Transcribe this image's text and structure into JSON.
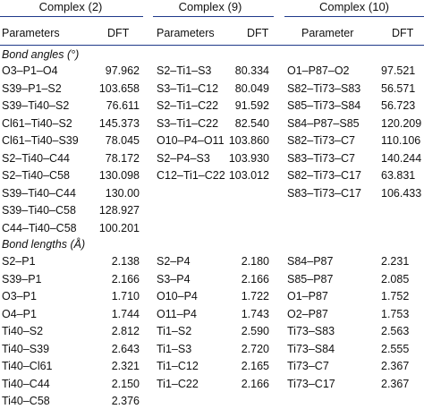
{
  "headers": {
    "complex2": "Complex (2)",
    "complex9": "Complex (9)",
    "complex10": "Complex (10)"
  },
  "subheaders": {
    "col1_param": "Parameters",
    "col1_dft": "DFT",
    "col2_param": "Parameters",
    "col2_dft": "DFT",
    "col3_param": "Parameter",
    "col3_dft": "DFT"
  },
  "sections": {
    "angles": "Bond angles (°)",
    "lengths": "Bond lengths (Å)"
  },
  "angles": {
    "c2": [
      [
        "O3–P1–O4",
        "97.962"
      ],
      [
        "S39–P1–S2",
        "103.658"
      ],
      [
        "S39–Ti40–S2",
        "76.611"
      ],
      [
        "Cl61–Ti40–S2",
        "145.373"
      ],
      [
        "Cl61–Ti40–S39",
        "78.045"
      ],
      [
        "S2–Ti40–C44",
        "78.172"
      ],
      [
        "S2–Ti40–C58",
        "130.098"
      ],
      [
        "S39–Ti40–C44",
        "130.00"
      ],
      [
        "S39–Ti40–C58",
        "128.927"
      ],
      [
        "C44–Ti40–C58",
        "100.201"
      ]
    ],
    "c9": [
      [
        "S2–Ti1–S3",
        "80.334"
      ],
      [
        "S3–Ti1–C12",
        "80.049"
      ],
      [
        "S2–Ti1–C22",
        "91.592"
      ],
      [
        "S3–Ti1–C22",
        "82.540"
      ],
      [
        "O10–P4–O11",
        "103.860"
      ],
      [
        "S2–P4–S3",
        "103.930"
      ],
      [
        "C12–Ti1–C22",
        "103.012"
      ]
    ],
    "c10": [
      [
        "O1–P87–O2",
        "97.521"
      ],
      [
        "S82–Ti73–S83",
        "56.571"
      ],
      [
        "S85–Ti73–S84",
        "56.723"
      ],
      [
        "S84–P87–S85",
        "120.209"
      ],
      [
        "S82–Ti73–C7",
        "110.106"
      ],
      [
        "S83–Ti73–C7",
        "140.244"
      ],
      [
        "S82–Ti73–C17",
        "63.831"
      ],
      [
        "S83–Ti73–C17",
        "106.433"
      ]
    ]
  },
  "lengths": {
    "c2": [
      [
        "S2–P1",
        "2.138"
      ],
      [
        "S39–P1",
        "2.166"
      ],
      [
        "O3–P1",
        "1.710"
      ],
      [
        "O4–P1",
        "1.744"
      ],
      [
        "Ti40–S2",
        "2.812"
      ],
      [
        "Ti40–S39",
        "2.643"
      ],
      [
        "Ti40–Cl61",
        "2.321"
      ],
      [
        "Ti40–C44",
        "2.150"
      ],
      [
        "Ti40–C58",
        "2.376"
      ]
    ],
    "c9": [
      [
        "S2–P4",
        "2.180"
      ],
      [
        "S3–P4",
        "2.166"
      ],
      [
        "O10–P4",
        "1.722"
      ],
      [
        "O11–P4",
        "1.743"
      ],
      [
        "Ti1–S2",
        "2.590"
      ],
      [
        "Ti1–S3",
        "2.720"
      ],
      [
        "Ti1–C12",
        "2.165"
      ],
      [
        "Ti1–C22",
        "2.166"
      ]
    ],
    "c10": [
      [
        "S84–P87",
        "2.231"
      ],
      [
        "S85–P87",
        "2.085"
      ],
      [
        "O1–P87",
        "1.752"
      ],
      [
        "O2–P87",
        "1.753"
      ],
      [
        "Ti73–S83",
        "2.563"
      ],
      [
        "Ti73–S84",
        "2.555"
      ],
      [
        "Ti73–C7",
        "2.367"
      ],
      [
        "Ti73–C17",
        "2.367"
      ]
    ]
  }
}
